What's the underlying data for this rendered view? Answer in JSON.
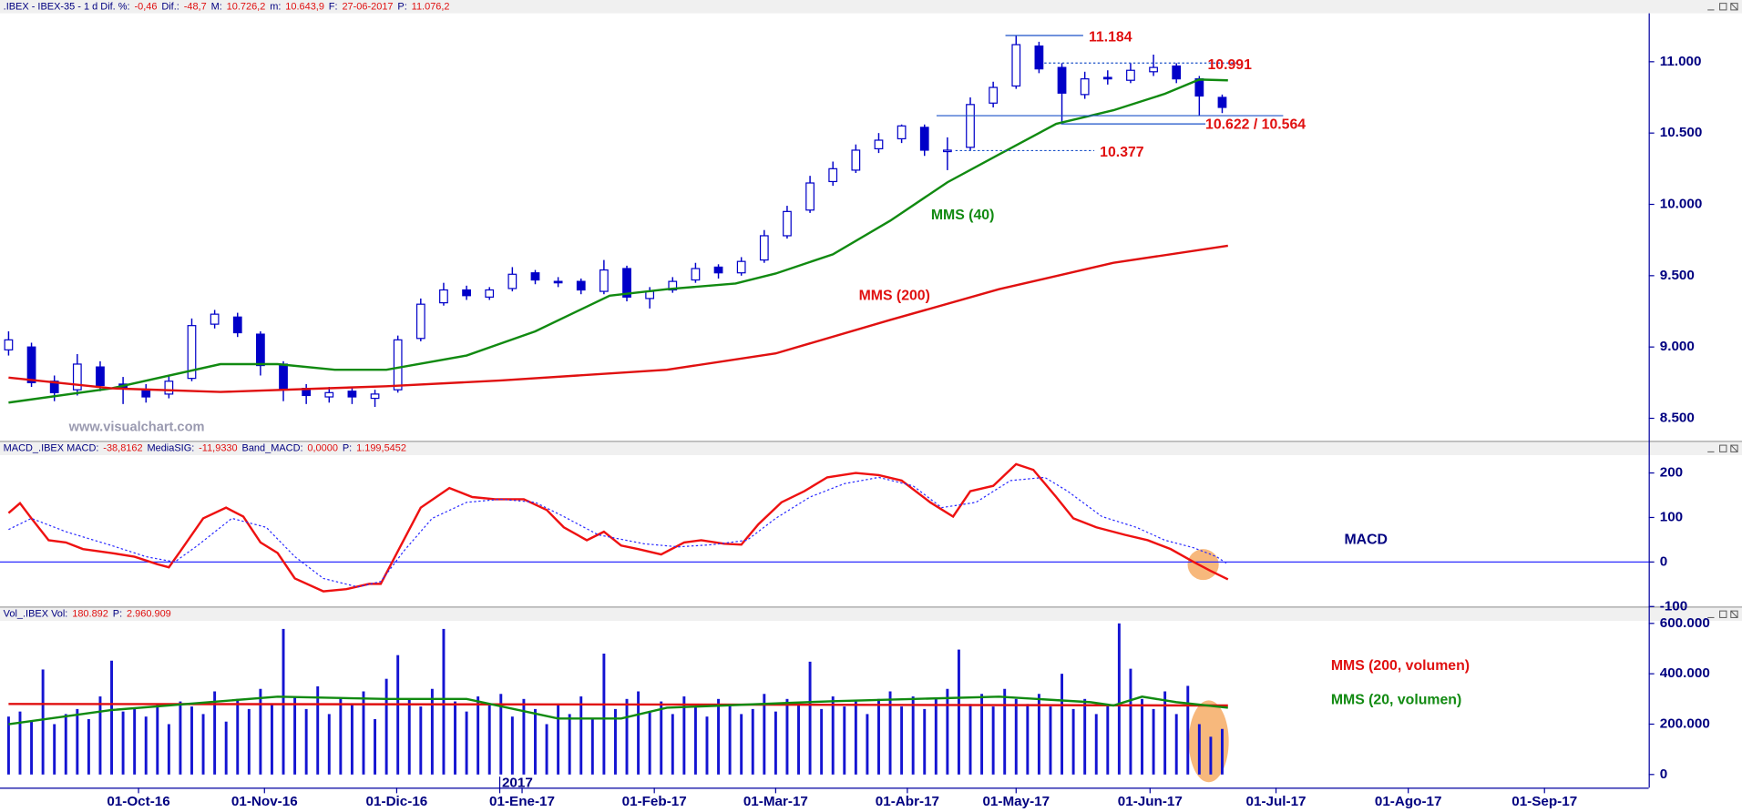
{
  "chart_data": [
    {
      "type": "candlestick",
      "title": [
        ".IBEX - IBEX-35 - 1 d  Dif. %:",
        "-0,46",
        "Dif.:",
        "-48,7",
        "M:",
        "10.726,2",
        "m:",
        "10.643,9",
        "F:",
        "27-06-2017",
        "P:",
        "11.076,2"
      ],
      "x": [
        0,
        4,
        8,
        12,
        16,
        20,
        24,
        28,
        32,
        36,
        40,
        44,
        48,
        52,
        56,
        60,
        64,
        68,
        72,
        76,
        80,
        84,
        88,
        92,
        96,
        100,
        104,
        108,
        112,
        116,
        120,
        124,
        128,
        132,
        136,
        140,
        144,
        148,
        152,
        156,
        160,
        164,
        168,
        172,
        176,
        180,
        184,
        188,
        192,
        196,
        200,
        204,
        208,
        212
      ],
      "open": [
        8980,
        9000,
        8760,
        8700,
        8860,
        8740,
        8700,
        8670,
        8780,
        9160,
        9210,
        9090,
        8880,
        8710,
        8650,
        8690,
        8640,
        8700,
        9060,
        9310,
        9400,
        9350,
        9410,
        9520,
        9460,
        9460,
        9390,
        9550,
        9340,
        9400,
        9470,
        9560,
        9520,
        9610,
        9780,
        9960,
        10160,
        10240,
        10390,
        10460,
        10540,
        10370,
        10400,
        10710,
        10830,
        11110,
        10960,
        10770,
        10890,
        10870,
        10930,
        10970,
        10880,
        10750
      ],
      "high": [
        9110,
        9030,
        8800,
        8950,
        8900,
        8790,
        8740,
        8800,
        9200,
        9260,
        9240,
        9110,
        8900,
        8740,
        8720,
        8720,
        8700,
        9080,
        9340,
        9450,
        9430,
        9420,
        9560,
        9540,
        9490,
        9480,
        9610,
        9570,
        9420,
        9490,
        9590,
        9580,
        9630,
        9820,
        9990,
        10200,
        10300,
        10420,
        10500,
        10560,
        10560,
        10470,
        10750,
        10860,
        11184,
        11140,
        10990,
        10930,
        10940,
        10991,
        11050,
        10990,
        10900,
        10770
      ],
      "low": [
        8940,
        8720,
        8620,
        8660,
        8690,
        8600,
        8610,
        8640,
        8760,
        9130,
        9070,
        8800,
        8620,
        8600,
        8610,
        8600,
        8580,
        8680,
        9040,
        9290,
        9330,
        9330,
        9390,
        9440,
        9420,
        9370,
        9370,
        9320,
        9270,
        9380,
        9450,
        9480,
        9500,
        9590,
        9760,
        9940,
        10130,
        10220,
        10360,
        10430,
        10340,
        10240,
        10380,
        10680,
        10810,
        10920,
        10564,
        10740,
        10840,
        10850,
        10900,
        10850,
        10622,
        10640
      ],
      "close": [
        9050,
        8750,
        8680,
        8880,
        8730,
        8710,
        8650,
        8760,
        9150,
        9230,
        9100,
        8870,
        8700,
        8660,
        8680,
        8650,
        8670,
        9050,
        9300,
        9400,
        9360,
        9400,
        9510,
        9470,
        9450,
        9400,
        9540,
        9350,
        9390,
        9460,
        9550,
        9520,
        9600,
        9780,
        9950,
        10150,
        10250,
        10380,
        10450,
        10550,
        10380,
        10380,
        10700,
        10820,
        11120,
        10950,
        10780,
        10880,
        10880,
        10940,
        10960,
        10880,
        10760,
        10680
      ],
      "color": "#0000c8",
      "up_color": "#ffffff",
      "series": [
        {
          "name": "MMS (40)",
          "color": "#118a11",
          "x": [
            0,
            18,
            37,
            47,
            57,
            66,
            80,
            92,
            105,
            115,
            127,
            134,
            144,
            154,
            164,
            173,
            183,
            193,
            202,
            208,
            213
          ],
          "values": [
            8610,
            8710,
            8880,
            8880,
            8840,
            8840,
            8940,
            9110,
            9360,
            9405,
            9445,
            9515,
            9650,
            9885,
            10155,
            10350,
            10565,
            10660,
            10775,
            10875,
            10870
          ]
        },
        {
          "name": "MMS (200)",
          "color": "#e01010",
          "x": [
            0,
            18,
            37,
            66,
            86,
            115,
            134,
            154,
            173,
            193,
            213
          ],
          "values": [
            8785,
            8710,
            8685,
            8725,
            8765,
            8840,
            8955,
            9190,
            9405,
            9590,
            9710
          ]
        }
      ],
      "annotations": [
        {
          "label": "11.184",
          "value": 11184
        },
        {
          "label": "10.991",
          "value": 10991
        },
        {
          "label": "10.622 / 10.564",
          "values": [
            10622,
            10564
          ]
        },
        {
          "label": "10.377",
          "value": 10377
        }
      ],
      "watermark": "www.visualchart.com",
      "xlim": [
        -1.5,
        286.5
      ],
      "ylim": [
        8350,
        11340
      ],
      "yticks": [
        {
          "value": 11000,
          "label": "11.000"
        },
        {
          "value": 10500,
          "label": "10.500"
        },
        {
          "value": 10000,
          "label": "10.000"
        },
        {
          "value": 9500,
          "label": "9.500"
        },
        {
          "value": 9000,
          "label": "9.000"
        },
        {
          "value": 8500,
          "label": "8.500"
        }
      ]
    },
    {
      "type": "line",
      "title": [
        "MACD_.IBEX MACD:",
        "-38,8162",
        "MediaSIG:",
        "-11,9330",
        "Band_MACD:",
        "0,0000",
        "P:",
        "1.199,5452"
      ],
      "series": [
        {
          "name": "MACD",
          "color": "#ee1111",
          "x": [
            0,
            2,
            4,
            7,
            10,
            13,
            18,
            22,
            26,
            28,
            30,
            34,
            38,
            41,
            44,
            47,
            50,
            55,
            59,
            63,
            65,
            68,
            72,
            77,
            81,
            85,
            90,
            94,
            97,
            101,
            104,
            107,
            110,
            114,
            118,
            121,
            125,
            128,
            131,
            135,
            139,
            143,
            148,
            152,
            156,
            161,
            165,
            168,
            172,
            176,
            179,
            183,
            186,
            190,
            195,
            199,
            203,
            207,
            210,
            213
          ],
          "values": [
            110,
            132,
            98,
            49,
            44,
            29,
            20,
            12,
            -5,
            -12,
            24,
            98,
            122,
            102,
            44,
            20,
            -37,
            -66,
            -61,
            -49,
            -49,
            24,
            122,
            166,
            146,
            141,
            141,
            117,
            78,
            49,
            68,
            37,
            29,
            17,
            44,
            49,
            41,
            39,
            85,
            134,
            159,
            190,
            200,
            195,
            183,
            134,
            102,
            159,
            171,
            220,
            207,
            146,
            98,
            78,
            61,
            49,
            29,
            0,
            -20,
            -39
          ]
        },
        {
          "color": "#2a2aff",
          "dashed": true,
          "x": [
            0,
            4,
            10,
            18,
            24,
            29,
            33,
            39,
            45,
            50,
            55,
            61,
            65,
            69,
            74,
            80,
            86,
            92,
            97,
            103,
            111,
            117,
            123,
            129,
            134,
            140,
            146,
            152,
            158,
            163,
            169,
            175,
            181,
            185,
            191,
            197,
            202,
            207,
            211,
            213
          ],
          "values": [
            73,
            98,
            68,
            37,
            12,
            0,
            37,
            98,
            78,
            12,
            -37,
            -56,
            -44,
            24,
            98,
            134,
            141,
            134,
            102,
            61,
            41,
            34,
            39,
            49,
            98,
            146,
            176,
            190,
            171,
            122,
            134,
            183,
            190,
            159,
            102,
            78,
            49,
            32,
            12,
            -5
          ]
        }
      ],
      "band": 0,
      "xlim": [
        -1.5,
        286.5
      ],
      "ylim": [
        -100,
        240
      ],
      "yticks": [
        200,
        100,
        0,
        -100
      ]
    },
    {
      "type": "bar",
      "title": [
        "Vol_.IBEX Vol:",
        "180.892",
        "P:",
        "2.960.909"
      ],
      "x": [
        0,
        2,
        4,
        6,
        8,
        10,
        12,
        14,
        16,
        18,
        20,
        22,
        24,
        26,
        28,
        30,
        32,
        34,
        36,
        38,
        40,
        42,
        44,
        46,
        48,
        50,
        52,
        54,
        56,
        58,
        60,
        62,
        64,
        66,
        68,
        70,
        72,
        74,
        76,
        78,
        80,
        82,
        84,
        86,
        88,
        90,
        92,
        94,
        96,
        98,
        100,
        102,
        104,
        106,
        108,
        110,
        112,
        114,
        116,
        118,
        120,
        122,
        124,
        126,
        128,
        130,
        132,
        134,
        136,
        138,
        140,
        142,
        144,
        146,
        148,
        150,
        152,
        154,
        156,
        158,
        160,
        162,
        164,
        166,
        168,
        170,
        172,
        174,
        176,
        178,
        180,
        182,
        184,
        186,
        188,
        190,
        192,
        194,
        196,
        198,
        200,
        202,
        204,
        206,
        208,
        210,
        212
      ],
      "values": [
        230000,
        250000,
        210000,
        417000,
        200000,
        240000,
        260000,
        220000,
        310000,
        452000,
        250000,
        260000,
        230000,
        280000,
        200000,
        290000,
        270000,
        240000,
        330000,
        210000,
        300000,
        260000,
        340000,
        280000,
        578000,
        310000,
        260000,
        350000,
        240000,
        300000,
        280000,
        330000,
        220000,
        380000,
        474000,
        300000,
        270000,
        340000,
        578000,
        290000,
        250000,
        310000,
        280000,
        320000,
        230000,
        300000,
        260000,
        200000,
        280000,
        240000,
        310000,
        220000,
        480000,
        260000,
        300000,
        330000,
        250000,
        290000,
        240000,
        310000,
        270000,
        230000,
        300000,
        280000,
        240000,
        260000,
        320000,
        250000,
        300000,
        280000,
        448000,
        260000,
        310000,
        270000,
        290000,
        240000,
        300000,
        330000,
        270000,
        310000,
        260000,
        300000,
        340000,
        496000,
        280000,
        320000,
        270000,
        340000,
        300000,
        280000,
        320000,
        270000,
        400000,
        260000,
        300000,
        240000,
        280000,
        600000,
        420000,
        300000,
        260000,
        330000,
        240000,
        352000,
        200000,
        150000,
        180892
      ],
      "color": "#1414d2",
      "series": [
        {
          "name": "MMS (200, volumen)",
          "color": "#e01010",
          "x": [
            0,
            115,
            213
          ],
          "values": [
            280000,
            278000,
            274000
          ]
        },
        {
          "name": "MMS (20, volumen)",
          "color": "#118a11",
          "x": [
            0,
            18,
            47,
            66,
            80,
            96,
            107,
            115,
            144,
            173,
            189,
            193,
            198,
            204,
            213
          ],
          "values": [
            200000,
            256000,
            309000,
            300000,
            300000,
            222000,
            222000,
            265000,
            291000,
            309000,
            287000,
            274000,
            309000,
            287000,
            265000
          ]
        }
      ],
      "xlim": [
        -1.5,
        286.5
      ],
      "ylim": [
        -48000,
        610000
      ],
      "yticks": [
        {
          "value": 600000,
          "label": "600.000"
        },
        {
          "value": 400000,
          "label": "400.000"
        },
        {
          "value": 200000,
          "label": "200.000"
        },
        0
      ],
      "xticks": [
        {
          "value": 22.7,
          "label": "01-Oct-16"
        },
        {
          "value": 44.7,
          "label": "01-Nov-16"
        },
        {
          "value": 67.8,
          "label": "01-Dic-16"
        },
        {
          "value": 89.7,
          "label": "01-Ene-17"
        },
        {
          "value": 112.8,
          "label": "01-Feb-17"
        },
        {
          "value": 134,
          "label": "01-Mar-17"
        },
        {
          "value": 157,
          "label": "01-Abr-17"
        },
        {
          "value": 176,
          "label": "01-May-17"
        },
        {
          "value": 199.4,
          "label": "01-Jun-17"
        },
        {
          "value": 221.4,
          "label": "01-Jul-17"
        },
        {
          "value": 244.5,
          "label": "01-Ago-17"
        },
        {
          "value": 268.3,
          "label": "01-Sep-17"
        }
      ],
      "year_markers": [
        {
          "value": 85.8,
          "label": "2017"
        }
      ]
    }
  ]
}
